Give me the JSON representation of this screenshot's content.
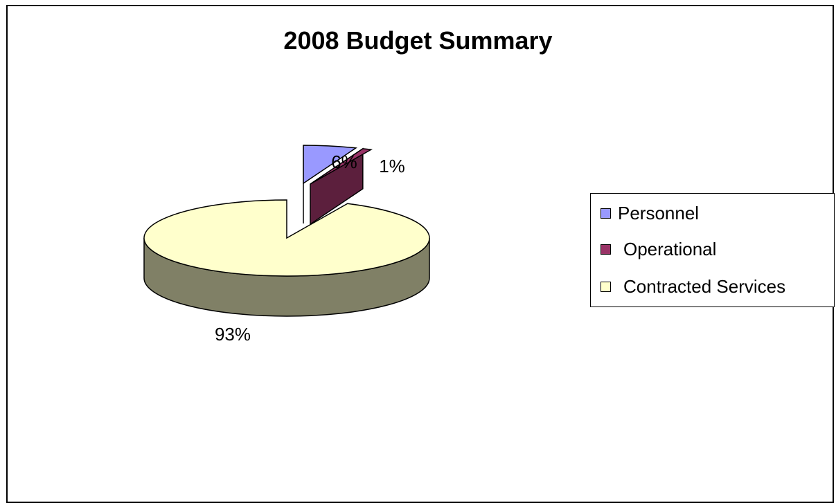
{
  "chart_data": {
    "type": "pie",
    "title": "2008 Budget Summary",
    "series": [
      {
        "name": "Personnel",
        "value": 6,
        "label": "6%",
        "color": "#9999FF",
        "side_color": "#5A5A99"
      },
      {
        "name": "Operational",
        "value": 1,
        "label": "1%",
        "color": "#993366",
        "side_color": "#5C1F3D"
      },
      {
        "name": "Contracted Services",
        "value": 93,
        "label": "93%",
        "color": "#FFFFCC",
        "side_color": "#808066"
      }
    ],
    "legend_position": "right",
    "three_d": true,
    "exploded_slices": [
      "Personnel",
      "Operational"
    ]
  }
}
